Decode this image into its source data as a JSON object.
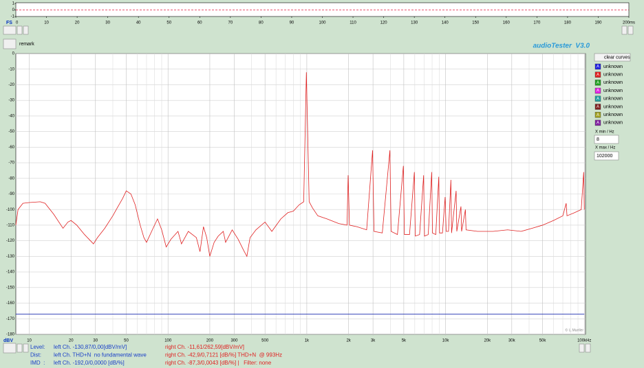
{
  "app_title": "audioTester  V3.0",
  "remark": "remark",
  "copyright": "© U.Mueller",
  "chart_data": [
    {
      "type": "line",
      "x_prefix": "FS",
      "xlim": [
        0,
        200
      ],
      "ylim": [
        -1,
        1
      ],
      "xticks": [
        0,
        10,
        20,
        30,
        40,
        50,
        60,
        70,
        80,
        90,
        100,
        110,
        120,
        130,
        140,
        150,
        160,
        170,
        180,
        190,
        {
          "value": 200,
          "label": "200ms"
        }
      ],
      "yticks": [
        1,
        0,
        -1
      ],
      "series": [
        {
          "color": "#e02040",
          "dash": true,
          "x": [
            0,
            200
          ],
          "values": [
            0,
            0
          ]
        }
      ]
    },
    {
      "type": "line",
      "xscale": "log",
      "grid": true,
      "y_unit": "dBV",
      "xlim": [
        8,
        102000
      ],
      "ylim": [
        -180,
        0
      ],
      "xticks": [
        10,
        20,
        30,
        50,
        100,
        200,
        300,
        500,
        {
          "value": 1000,
          "label": "1k"
        },
        {
          "value": 2000,
          "label": "2k"
        },
        {
          "value": 3000,
          "label": "3k"
        },
        {
          "value": 5000,
          "label": "5k"
        },
        {
          "value": 10000,
          "label": "10k"
        },
        {
          "value": 20000,
          "label": "20k"
        },
        {
          "value": 30000,
          "label": "30k"
        },
        {
          "value": 50000,
          "label": "50k"
        },
        {
          "value": 100000,
          "label": "100kHz"
        }
      ],
      "xminor": [
        40,
        60,
        70,
        80,
        90,
        400,
        600,
        700,
        800,
        900,
        4000,
        6000,
        7000,
        8000,
        9000,
        40000,
        60000,
        70000,
        80000,
        90000
      ],
      "yticks": [
        0,
        -10,
        -20,
        -30,
        -40,
        -50,
        -60,
        -70,
        -80,
        -90,
        -100,
        -110,
        -120,
        -130,
        -140,
        -150,
        -160,
        -170,
        -180
      ],
      "series": [
        {
          "color": "#e02020",
          "x": [
            8,
            8.3,
            9,
            10,
            12,
            13,
            15,
            17.5,
            19,
            20,
            22,
            25,
            29,
            31,
            35,
            40,
            43,
            47,
            50,
            54,
            58,
            63,
            67,
            70,
            78,
            84,
            90,
            97,
            105,
            118,
            125,
            140,
            160,
            170,
            180,
            190,
            200,
            215,
            230,
            250,
            260,
            290,
            320,
            350,
            370,
            390,
            430,
            500,
            560,
            650,
            730,
            800,
            880,
            950,
            993,
            1040,
            1100,
            1200,
            1400,
            1700,
            1950,
            1986,
            2030,
            2300,
            2700,
            2979,
            3050,
            3500,
            3972,
            4050,
            4500,
            4965,
            5050,
            5500,
            5958,
            6050,
            6500,
            6951,
            7050,
            7500,
            7944,
            8050,
            8500,
            8937,
            9050,
            9500,
            9930,
            10100,
            10500,
            10923,
            11050,
            11916,
            12050,
            12909,
            13050,
            13902,
            14050,
            17000,
            22000,
            28000,
            35000,
            42000,
            50000,
            60000,
            70000,
            74000,
            75000,
            85000,
            95000,
            98900,
            100000
          ],
          "values": [
            -110,
            -100,
            -96,
            -95.5,
            -95,
            -96,
            -103,
            -112,
            -108,
            -107,
            -110,
            -116,
            -122,
            -118,
            -112,
            -104,
            -99,
            -93,
            -88,
            -90,
            -97,
            -110,
            -118,
            -121,
            -112,
            -106,
            -113,
            -124,
            -119,
            -114,
            -122,
            -114,
            -118,
            -127,
            -111,
            -118,
            -130,
            -121,
            -117,
            -114,
            -121,
            -113,
            -119,
            -126,
            -130,
            -118,
            -113,
            -108,
            -114,
            -106,
            -102,
            -101,
            -97,
            -95,
            -12,
            -95,
            -99,
            -104,
            -106,
            -109,
            -110,
            -78,
            -110,
            -111,
            -113,
            -62,
            -114,
            -115,
            -62,
            -114,
            -116,
            -72,
            -116,
            -116,
            -76,
            -117,
            -116,
            -78,
            -117,
            -116,
            -76,
            -115,
            -116,
            -79,
            -115,
            -115,
            -92,
            -114,
            -114,
            -81,
            -115,
            -88,
            -114,
            -98,
            -114,
            -100,
            -113,
            -114,
            -114,
            -113,
            -114,
            -112,
            -110,
            -107,
            -104,
            -96,
            -104,
            -102,
            -100,
            -76,
            -100
          ]
        },
        {
          "color": "#2030b0",
          "x": [
            8,
            100000
          ],
          "values": [
            -167,
            -167
          ]
        }
      ]
    }
  ],
  "curves": {
    "button": "clear curves",
    "items": [
      {
        "icon": "A",
        "text": "unknown",
        "color": "#2020e0"
      },
      {
        "icon": "A",
        "text": "unknown",
        "color": "#e02020"
      },
      {
        "icon": "A",
        "text": "unknown",
        "color": "#20a020"
      },
      {
        "icon": "A",
        "text": "unknown",
        "color": "#e020e0"
      },
      {
        "icon": "A",
        "text": "unknown",
        "color": "#20a0a0"
      },
      {
        "icon": "A",
        "text": "unknown",
        "color": "#802020"
      },
      {
        "icon": "A",
        "text": "unknown",
        "color": "#a0a020"
      },
      {
        "icon": "A",
        "text": "unknown",
        "color": "#8020a0"
      }
    ]
  },
  "xrange": {
    "min_label": "X min / Hz",
    "min": "8",
    "max_label": "X max / Hz",
    "max": "102000"
  },
  "readout": [
    {
      "label": "Level:",
      "left": "left Ch. -130,87/0,00[dBV/mV]",
      "right": "right Ch. -11,61/262,59[dBV/mV]"
    },
    {
      "label": "Dist:",
      "left": "left Ch. THD+N  no fundamental wave",
      "right": "right Ch. -42,9/0,7121 [dB/%] THD+N  @ 993Hz"
    },
    {
      "label": "IMD  :",
      "left": "left Ch. -192,0/0,0000 [dB/%]",
      "right": "right Ch. -87,3/0,0043 [dB/%] |   Filter: none"
    }
  ]
}
